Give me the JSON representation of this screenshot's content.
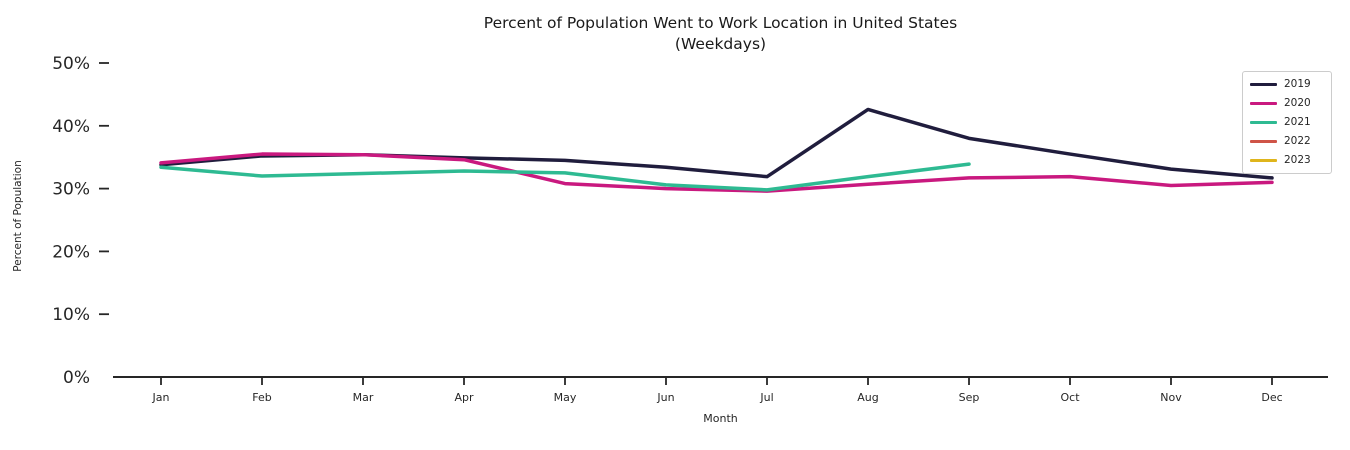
{
  "chart_data": {
    "type": "line",
    "title_line1": "Percent of Population Went to Work Location in United States",
    "title_line2": "(Weekdays)",
    "xlabel": "Month",
    "ylabel": "Percent of Population",
    "categories": [
      "Jan",
      "Feb",
      "Mar",
      "Apr",
      "May",
      "Jun",
      "Jul",
      "Aug",
      "Sep",
      "Oct",
      "Nov",
      "Dec"
    ],
    "y_ticks": [
      {
        "pct": 0,
        "label": "0%"
      },
      {
        "pct": 10,
        "label": "10%"
      },
      {
        "pct": 20,
        "label": "20%"
      },
      {
        "pct": 30,
        "label": "30%"
      },
      {
        "pct": 40,
        "label": "40%"
      },
      {
        "pct": 50,
        "label": "50%"
      }
    ],
    "ylim": [
      0,
      51
    ],
    "grid": false,
    "legend_position": "upper right",
    "series": [
      {
        "name": "2019",
        "color": "#201d3d",
        "values": [
          33.8,
          35.2,
          35.4,
          34.9,
          34.5,
          33.4,
          31.9,
          42.6,
          38.0,
          35.5,
          33.1,
          31.7
        ]
      },
      {
        "name": "2020",
        "color": "#c9197f",
        "values": [
          34.1,
          35.5,
          35.4,
          34.6,
          30.8,
          30.0,
          29.6,
          30.7,
          31.7,
          31.9,
          30.5,
          31.0
        ]
      },
      {
        "name": "2021",
        "color": "#2eba92",
        "values": [
          33.4,
          32.0,
          32.4,
          32.8,
          32.5,
          30.6,
          29.8,
          31.9,
          33.9,
          null,
          null,
          null
        ]
      },
      {
        "name": "2022",
        "color": "#cf5447",
        "values": []
      },
      {
        "name": "2023",
        "color": "#dfb51c",
        "values": []
      }
    ],
    "colors": {
      "background": "#ffffff",
      "axis": "#262626",
      "text": "#262626"
    }
  }
}
